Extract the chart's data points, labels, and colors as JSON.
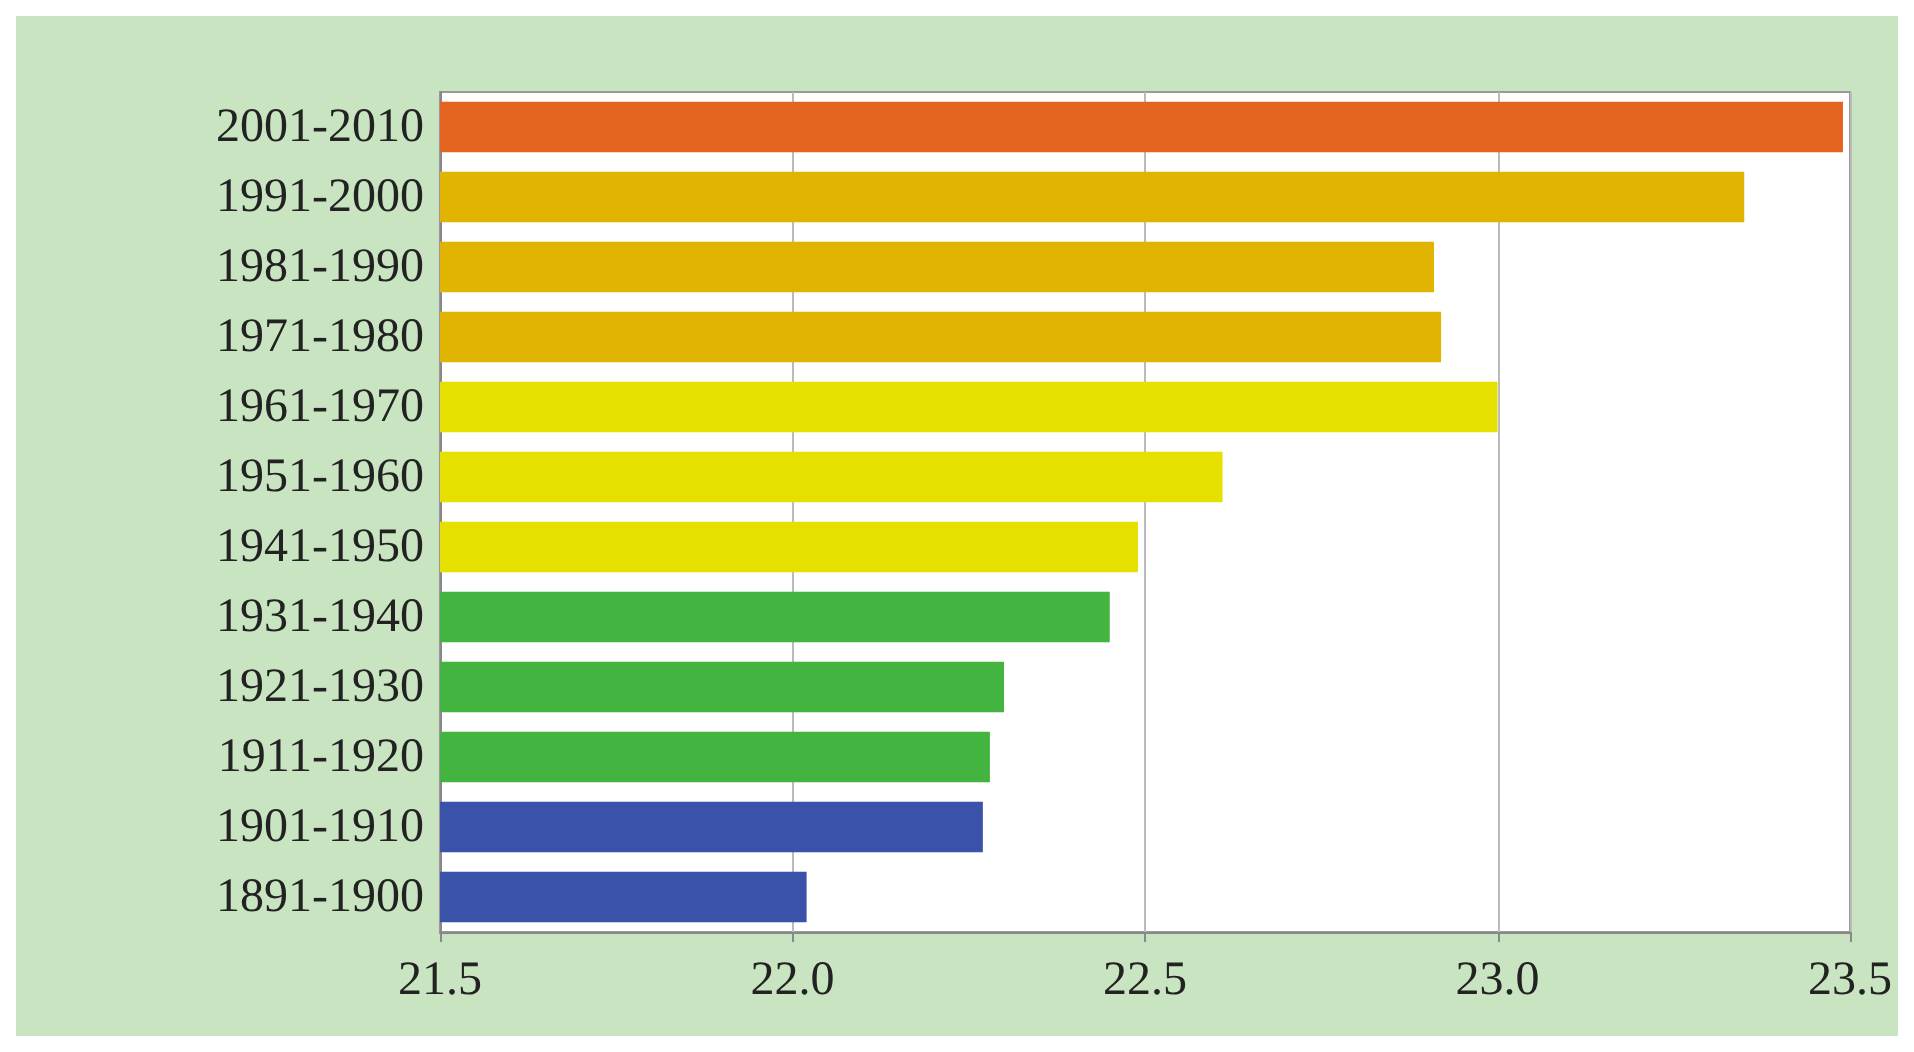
{
  "chart_data": {
    "type": "bar",
    "orientation": "horizontal",
    "categories": [
      "2001-2010",
      "1991-2000",
      "1981-1990",
      "1971-1980",
      "1961-1970",
      "1951-1960",
      "1941-1950",
      "1931-1940",
      "1921-1930",
      "1911-1920",
      "1901-1910",
      "1891-1900"
    ],
    "values": [
      23.49,
      23.35,
      22.91,
      22.92,
      23.0,
      22.61,
      22.49,
      22.45,
      22.3,
      22.28,
      22.27,
      22.02
    ],
    "colors": [
      "#e2641e",
      "#e0b400",
      "#e0b400",
      "#e0b400",
      "#e6e000",
      "#e6e000",
      "#e6e000",
      "#44b440",
      "#44b440",
      "#44b440",
      "#3a52aa",
      "#3a52aa"
    ],
    "xlim": [
      21.5,
      23.5
    ],
    "xticks": [
      {
        "value": 21.5,
        "label": "21.5"
      },
      {
        "value": 22,
        "label": "22.0"
      },
      {
        "value": 22.5,
        "label": "22.5"
      },
      {
        "value": 23,
        "label": "23.0"
      },
      {
        "value": 23.5,
        "label": "23.5"
      }
    ],
    "grid": "x"
  }
}
